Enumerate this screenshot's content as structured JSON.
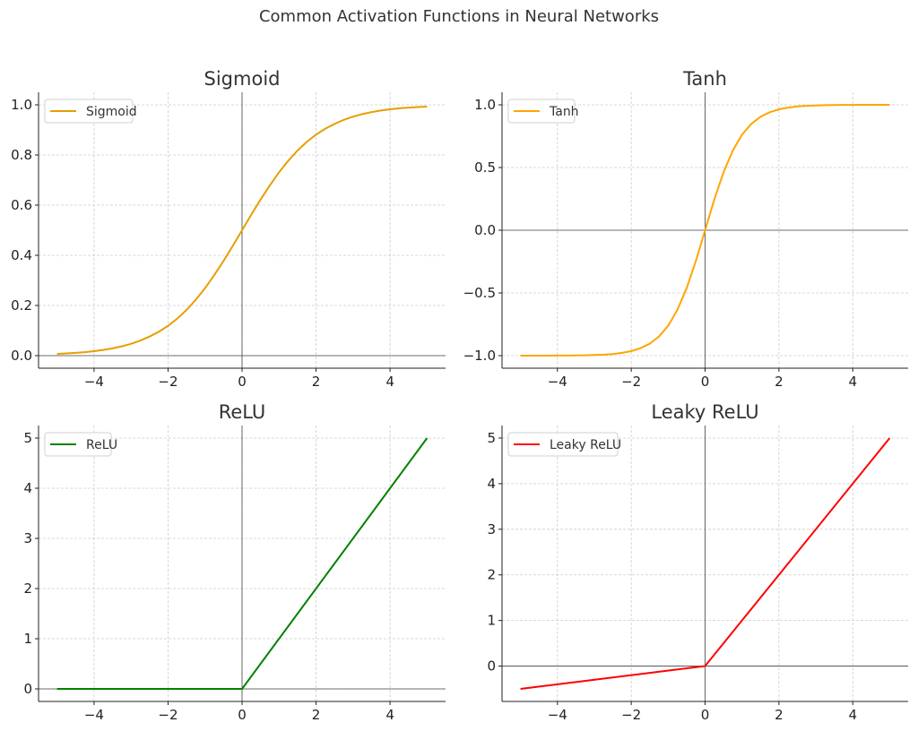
{
  "suptitle": "Common Activation Functions in Neural Networks",
  "chart_data": [
    {
      "type": "line",
      "title": "Sigmoid",
      "xlabel": "",
      "ylabel": "",
      "xlim": [
        -5.5,
        5.5
      ],
      "ylim": [
        -0.05,
        1.05
      ],
      "xticks": [
        -4,
        -2,
        0,
        2,
        4
      ],
      "xtick_labels": [
        "−4",
        "−2",
        "0",
        "2",
        "4"
      ],
      "yticks": [
        0,
        0.2,
        0.4,
        0.6,
        0.8,
        1.0
      ],
      "ytick_labels": [
        "0.0",
        "0.2",
        "0.4",
        "0.6",
        "0.8",
        "1.0"
      ],
      "grid": true,
      "legend": "top-left",
      "series": [
        {
          "name": "Sigmoid",
          "color": "#e69f00",
          "x": [
            -5,
            -4.75,
            -4.5,
            -4.25,
            -4,
            -3.75,
            -3.5,
            -3.25,
            -3,
            -2.75,
            -2.5,
            -2.25,
            -2,
            -1.75,
            -1.5,
            -1.25,
            -1,
            -0.75,
            -0.5,
            -0.25,
            0,
            0.25,
            0.5,
            0.75,
            1,
            1.25,
            1.5,
            1.75,
            2,
            2.25,
            2.5,
            2.75,
            3,
            3.25,
            3.5,
            3.75,
            4,
            4.25,
            4.5,
            4.75,
            5
          ],
          "y": [
            0.007,
            0.009,
            0.011,
            0.014,
            0.018,
            0.023,
            0.029,
            0.037,
            0.047,
            0.06,
            0.076,
            0.095,
            0.119,
            0.148,
            0.182,
            0.223,
            0.269,
            0.321,
            0.378,
            0.438,
            0.5,
            0.562,
            0.622,
            0.679,
            0.731,
            0.777,
            0.818,
            0.852,
            0.881,
            0.905,
            0.924,
            0.94,
            0.953,
            0.963,
            0.971,
            0.977,
            0.982,
            0.986,
            0.989,
            0.991,
            0.993
          ]
        }
      ]
    },
    {
      "type": "line",
      "title": "Tanh",
      "xlabel": "",
      "ylabel": "",
      "xlim": [
        -5.5,
        5.5
      ],
      "ylim": [
        -1.1,
        1.1
      ],
      "xticks": [
        -4,
        -2,
        0,
        2,
        4
      ],
      "xtick_labels": [
        "−4",
        "−2",
        "0",
        "2",
        "4"
      ],
      "yticks": [
        -1,
        -0.5,
        0,
        0.5,
        1
      ],
      "ytick_labels": [
        "−1.0",
        "−0.5",
        "0.0",
        "0.5",
        "1.0"
      ],
      "grid": true,
      "legend": "top-left",
      "series": [
        {
          "name": "Tanh",
          "color": "#ffa500",
          "x": [
            -5,
            -4.75,
            -4.5,
            -4.25,
            -4,
            -3.75,
            -3.5,
            -3.25,
            -3,
            -2.75,
            -2.5,
            -2.25,
            -2,
            -1.75,
            -1.5,
            -1.25,
            -1,
            -0.75,
            -0.5,
            -0.25,
            0,
            0.25,
            0.5,
            0.75,
            1,
            1.25,
            1.5,
            1.75,
            2,
            2.25,
            2.5,
            2.75,
            3,
            3.25,
            3.5,
            3.75,
            4,
            4.25,
            4.5,
            4.75,
            5
          ],
          "y": [
            -1.0,
            -1.0,
            -1.0,
            -1.0,
            -0.999,
            -0.999,
            -0.998,
            -0.997,
            -0.995,
            -0.992,
            -0.987,
            -0.978,
            -0.964,
            -0.941,
            -0.905,
            -0.848,
            -0.762,
            -0.635,
            -0.462,
            -0.245,
            0,
            0.245,
            0.462,
            0.635,
            0.762,
            0.848,
            0.905,
            0.941,
            0.964,
            0.978,
            0.987,
            0.992,
            0.995,
            0.997,
            0.998,
            0.999,
            0.999,
            1.0,
            1.0,
            1.0,
            1.0
          ]
        }
      ]
    },
    {
      "type": "line",
      "title": "ReLU",
      "xlabel": "",
      "ylabel": "",
      "xlim": [
        -5.5,
        5.5
      ],
      "ylim": [
        -0.25,
        5.25
      ],
      "xticks": [
        -4,
        -2,
        0,
        2,
        4
      ],
      "xtick_labels": [
        "−4",
        "−2",
        "0",
        "2",
        "4"
      ],
      "yticks": [
        0,
        1,
        2,
        3,
        4,
        5
      ],
      "ytick_labels": [
        "0",
        "1",
        "2",
        "3",
        "4",
        "5"
      ],
      "grid": true,
      "legend": "top-left",
      "series": [
        {
          "name": "ReLU",
          "color": "#008000",
          "x": [
            -5,
            0,
            5
          ],
          "y": [
            0,
            0,
            5
          ]
        }
      ]
    },
    {
      "type": "line",
      "title": "Leaky ReLU",
      "xlabel": "",
      "ylabel": "",
      "xlim": [
        -5.5,
        5.5
      ],
      "ylim": [
        -0.775,
        5.275
      ],
      "xticks": [
        -4,
        -2,
        0,
        2,
        4
      ],
      "xtick_labels": [
        "−4",
        "−2",
        "0",
        "2",
        "4"
      ],
      "yticks": [
        0,
        1,
        2,
        3,
        4,
        5
      ],
      "ytick_labels": [
        "0",
        "1",
        "2",
        "3",
        "4",
        "5"
      ],
      "grid": true,
      "legend": "top-left",
      "series": [
        {
          "name": "Leaky ReLU",
          "color": "#ff0000",
          "x": [
            -5,
            0,
            5
          ],
          "y": [
            -0.5,
            0,
            5
          ]
        }
      ]
    }
  ]
}
